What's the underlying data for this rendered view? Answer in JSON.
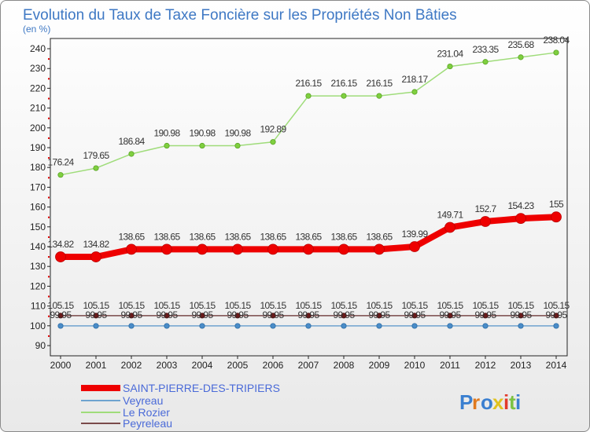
{
  "chart_data": {
    "type": "line",
    "title": "Evolution du Taux de Taxe Foncière sur les Propriétés Non Bâties",
    "subtitle": "(en %)",
    "x": [
      "2000",
      "2001",
      "2002",
      "2003",
      "2004",
      "2005",
      "2006",
      "2007",
      "2008",
      "2009",
      "2010",
      "2011",
      "2012",
      "2013",
      "2014"
    ],
    "y_ticks": [
      90,
      100,
      110,
      120,
      130,
      140,
      150,
      160,
      170,
      180,
      190,
      200,
      210,
      220,
      230,
      240
    ],
    "ylim": [
      90,
      240
    ],
    "series": [
      {
        "name": "SAINT-PIERRE-DES-TRIPIERS",
        "color": "#ee0000",
        "values": [
          134.82,
          134.82,
          138.65,
          138.65,
          138.65,
          138.65,
          138.65,
          138.65,
          138.65,
          138.65,
          139.99,
          149.71,
          152.7,
          154.23,
          155
        ],
        "labels": [
          "134.82",
          "134.82",
          "138.65",
          "138.65",
          "138.65",
          "138.65",
          "138.65",
          "138.65",
          "138.65",
          "138.65",
          "139.99",
          "149.71",
          "152.7",
          "154.23",
          "155"
        ]
      },
      {
        "name": "Veyreau",
        "color": "#6ea3cf",
        "values": [
          99.95,
          99.95,
          99.95,
          99.95,
          99.95,
          99.95,
          99.95,
          99.95,
          99.95,
          99.95,
          99.95,
          99.95,
          99.95,
          99.95,
          99.95
        ],
        "labels": [
          "99.95",
          "99.95",
          "99.95",
          "99.95",
          "99.95",
          "99.95",
          "99.95",
          "99.95",
          "99.95",
          "99.95",
          "99.95",
          "99.95",
          "99.95",
          "99.95",
          "99.95"
        ]
      },
      {
        "name": "Le Rozier",
        "color": "#9fdc7a",
        "values": [
          176.24,
          179.65,
          186.84,
          190.98,
          190.98,
          190.98,
          192.89,
          216.15,
          216.15,
          216.15,
          218.17,
          231.04,
          233.35,
          235.68,
          238.04
        ],
        "labels": [
          "176.24",
          "179.65",
          "186.84",
          "190.98",
          "190.98",
          "190.98",
          "192.89",
          "216.15",
          "216.15",
          "216.15",
          "218.17",
          "231.04",
          "233.35",
          "235.68",
          "238.04"
        ]
      },
      {
        "name": "Peyreleau",
        "color": "#7a4a4a",
        "values": [
          105.15,
          105.15,
          105.15,
          105.15,
          105.15,
          105.15,
          105.15,
          105.15,
          105.15,
          105.15,
          105.15,
          105.15,
          105.15,
          105.15,
          105.15
        ],
        "labels": [
          "105.15",
          "105.15",
          "105.15",
          "105.15",
          "105.15",
          "105.15",
          "105.15",
          "105.15",
          "105.15",
          "105.15",
          "105.15",
          "105.15",
          "105.15",
          "105.15",
          "105.15"
        ]
      }
    ],
    "legend_position": "bottom-left",
    "grid": false
  },
  "branding": {
    "logo_text": "Proxiti"
  }
}
